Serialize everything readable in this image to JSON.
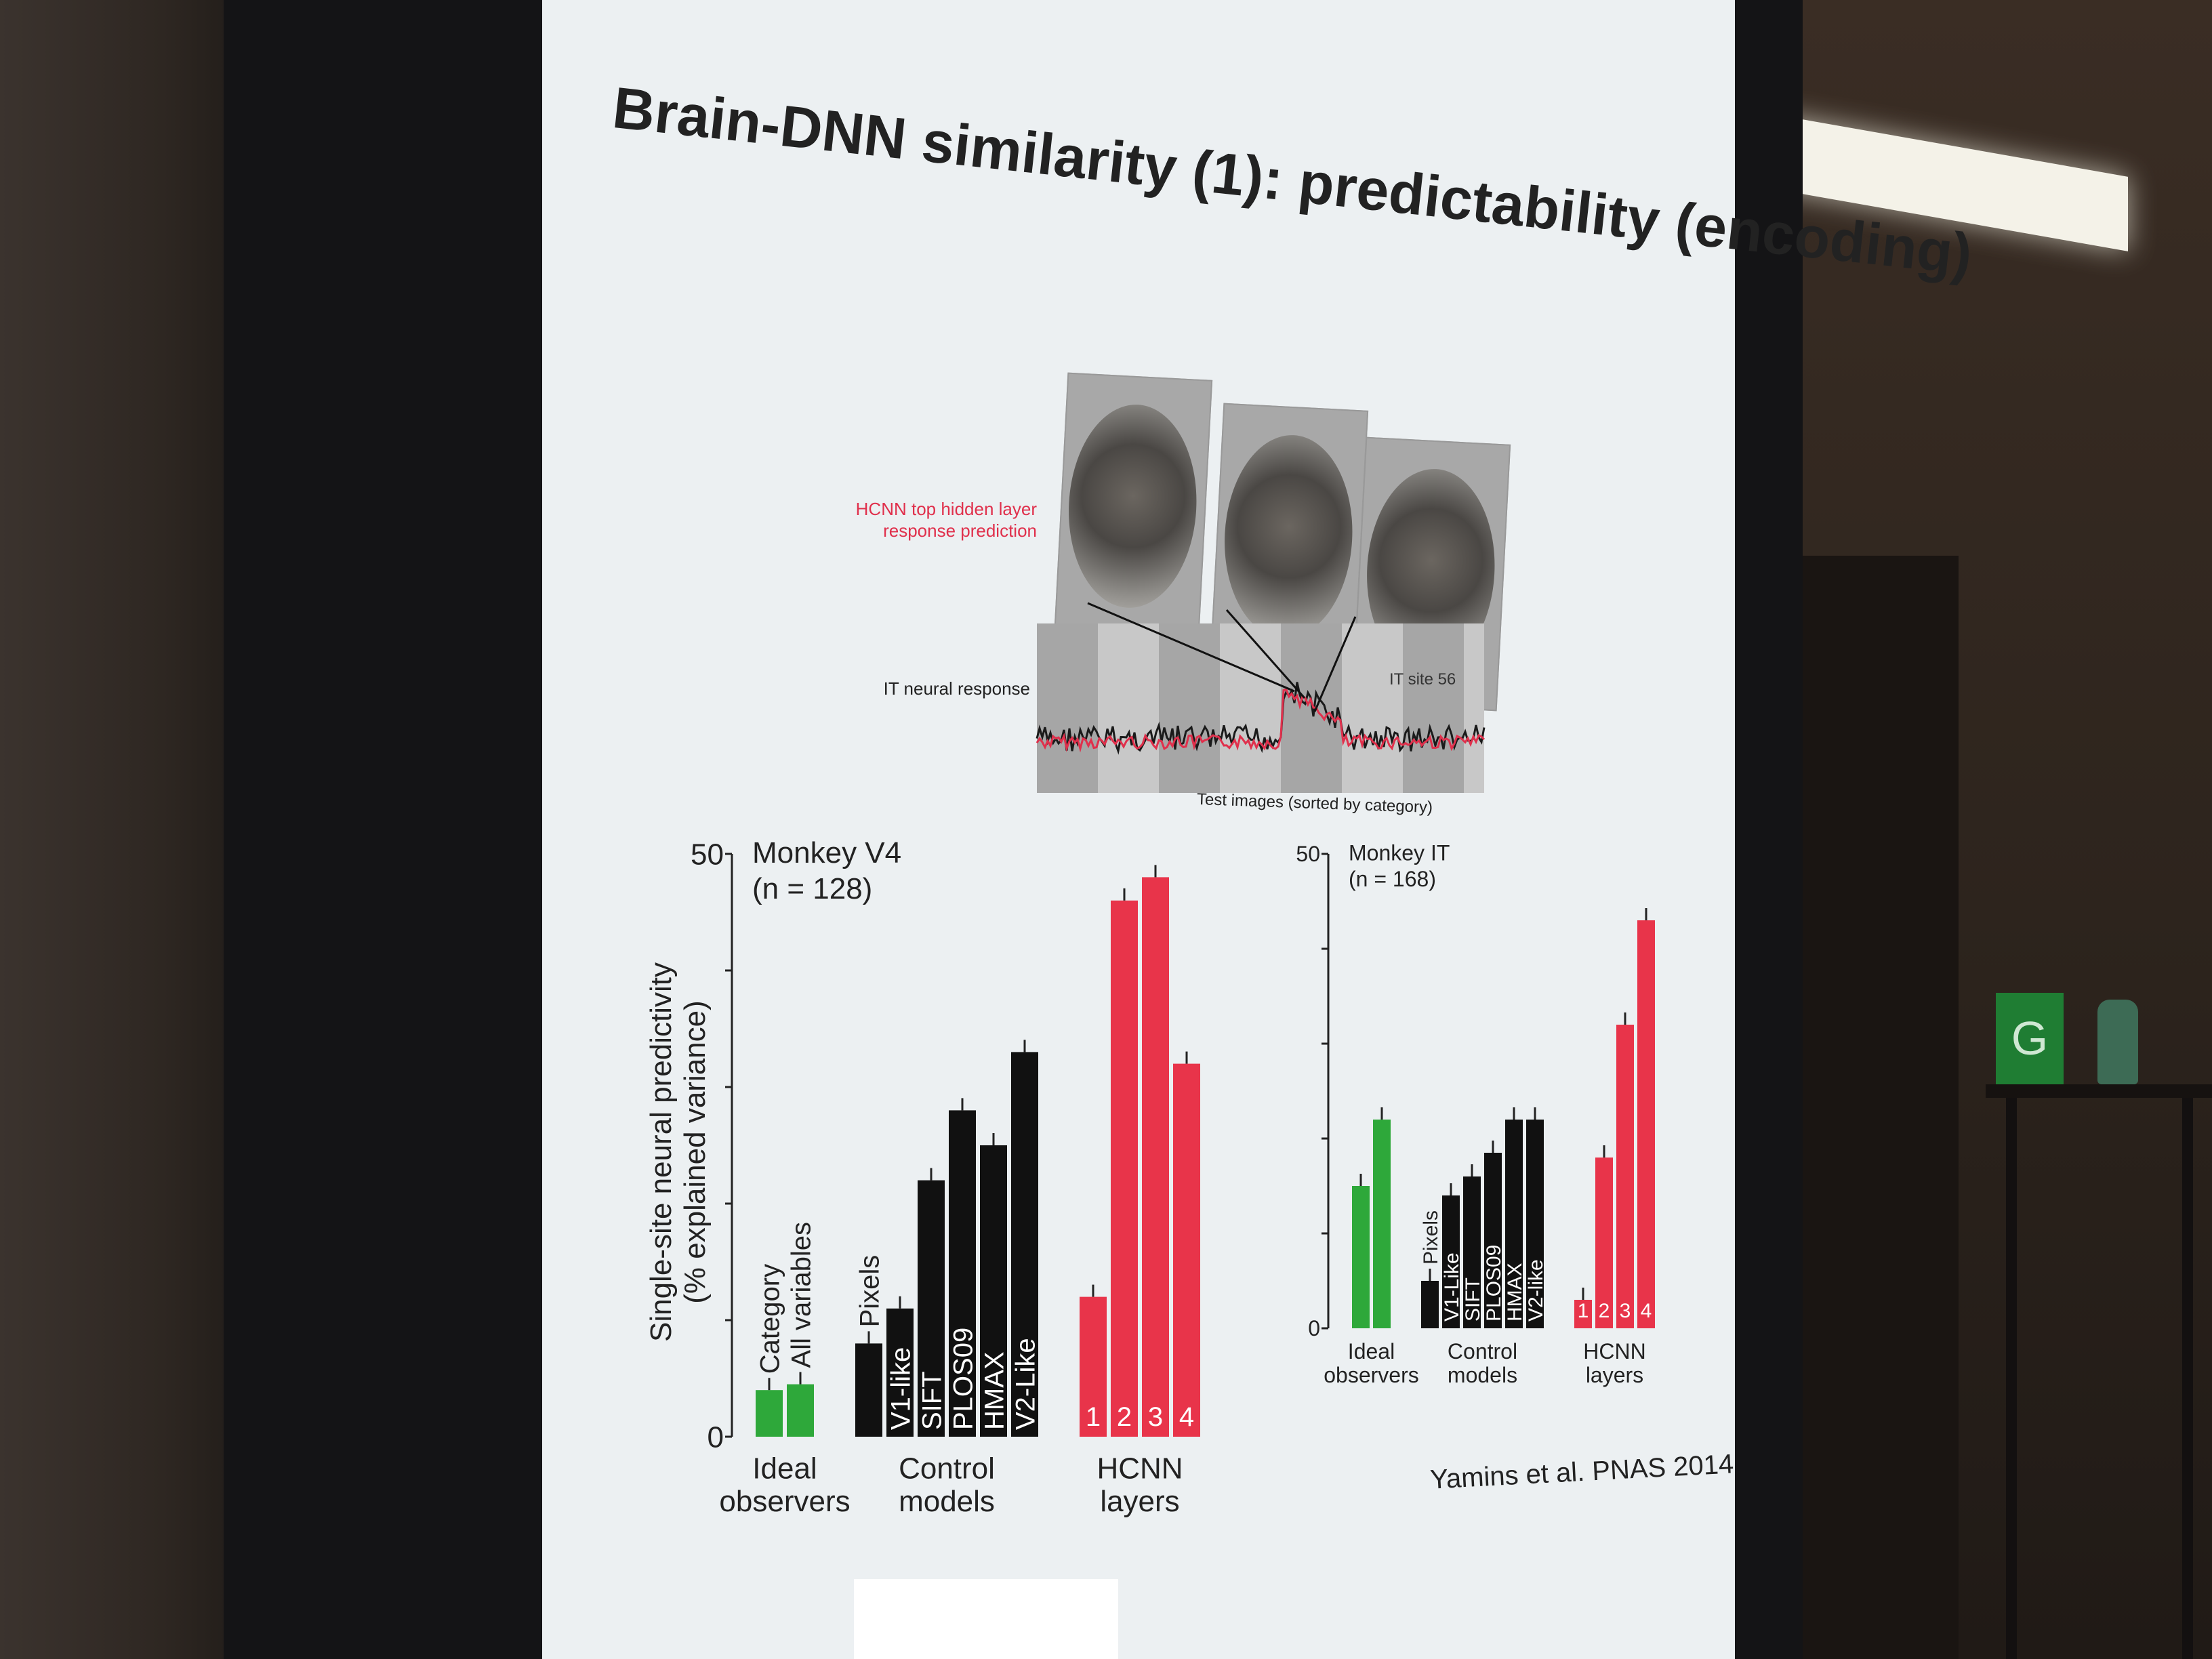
{
  "slide": {
    "title": "Brain-DNN similarity (1): predictability (encoding)",
    "citation": "Yamins et al. PNAS 2014"
  },
  "inset": {
    "prediction_label": "HCNN top hidden layer response prediction",
    "response_label": "IT neural response",
    "site_label": "IT site 56",
    "x_caption": "Test images (sorted by category)"
  },
  "sign_text": "G",
  "colors": {
    "ideal": "#2ea83a",
    "control": "#111111",
    "hcnn": "#e8344a",
    "trace_pred": "#e0304c",
    "trace_resp": "#1a1a1a"
  },
  "chart_data": [
    {
      "type": "bar",
      "title": "Monkey V4",
      "subtitle": "(n = 128)",
      "ylabel": "Single-site neural predictivity",
      "ylabel2": "(% explained variance)",
      "ylim": [
        0,
        50
      ],
      "y_ticks": [
        "50",
        "0"
      ],
      "groups": [
        {
          "label": "Ideal observers",
          "color": "#2ea83a",
          "bars": [
            {
              "label": "Category",
              "value": 4
            },
            {
              "label": "All variables",
              "value": 4.5
            }
          ]
        },
        {
          "label": "Control models",
          "color": "#111111",
          "bars": [
            {
              "label": "Pixels",
              "value": 8
            },
            {
              "label": "V1-like",
              "value": 11
            },
            {
              "label": "SIFT",
              "value": 22
            },
            {
              "label": "PLOS09",
              "value": 28
            },
            {
              "label": "HMAX",
              "value": 25
            },
            {
              "label": "V2-Like",
              "value": 33
            }
          ]
        },
        {
          "label": "HCNN layers",
          "color": "#e8344a",
          "bars": [
            {
              "label": "1",
              "value": 12
            },
            {
              "label": "2",
              "value": 46
            },
            {
              "label": "3",
              "value": 48
            },
            {
              "label": "4",
              "value": 32
            }
          ]
        }
      ]
    },
    {
      "type": "bar",
      "title": "Monkey IT",
      "subtitle": "(n = 168)",
      "ylim": [
        0,
        50
      ],
      "y_ticks": [
        "50",
        "0"
      ],
      "groups": [
        {
          "label": "Ideal observers",
          "color": "#2ea83a",
          "bars": [
            {
              "label": "",
              "value": 15
            },
            {
              "label": "",
              "value": 22
            }
          ]
        },
        {
          "label": "Control models",
          "color": "#111111",
          "bars": [
            {
              "label": "Pixels",
              "value": 5
            },
            {
              "label": "V1-Like",
              "value": 14
            },
            {
              "label": "SIFT",
              "value": 16
            },
            {
              "label": "PLOS09",
              "value": 18.5
            },
            {
              "label": "HMAX",
              "value": 22
            },
            {
              "label": "V2-like",
              "value": 22
            }
          ]
        },
        {
          "label": "HCNN layers",
          "color": "#e8344a",
          "bars": [
            {
              "label": "1",
              "value": 3
            },
            {
              "label": "2",
              "value": 18
            },
            {
              "label": "3",
              "value": 32
            },
            {
              "label": "4",
              "value": 43
            }
          ]
        }
      ]
    }
  ]
}
